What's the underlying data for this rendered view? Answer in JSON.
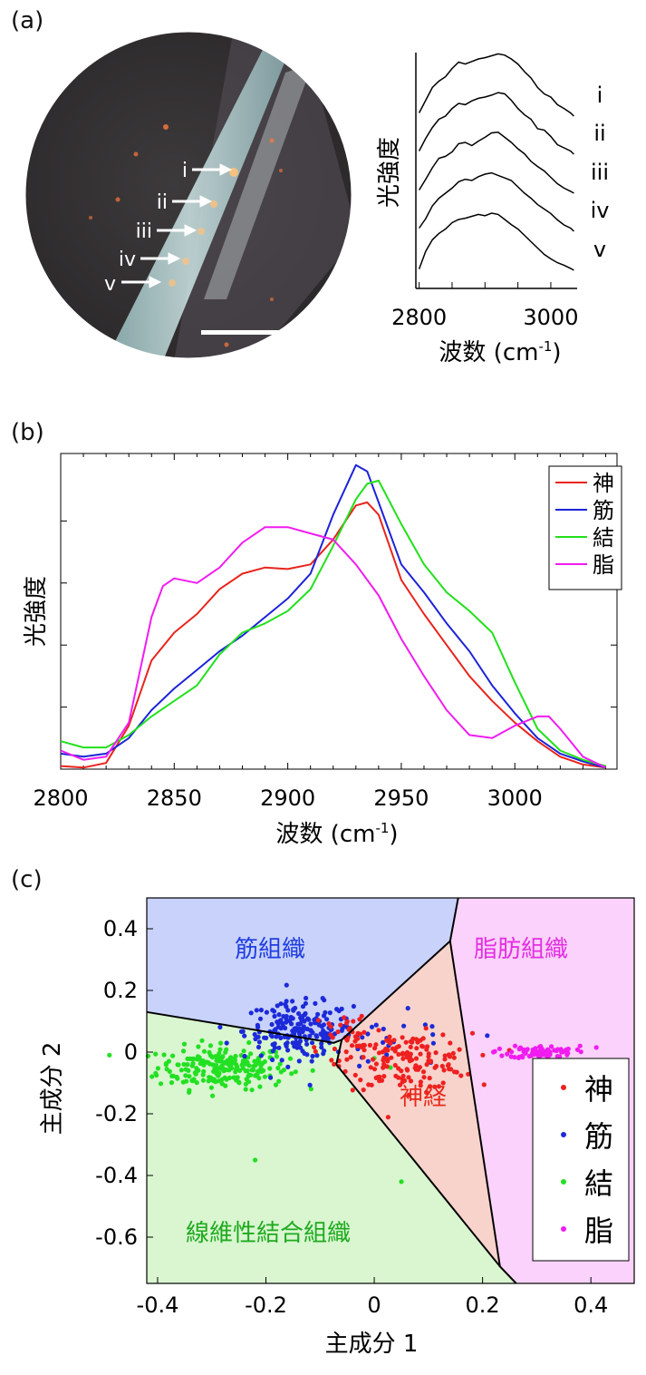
{
  "panels": {
    "a": "(a)",
    "b": "(b)",
    "c": "(c)"
  },
  "micrograph": {
    "arrow_labels": [
      "i",
      "ii",
      "iii",
      "iv",
      "v"
    ]
  },
  "chart_data": [
    {
      "type": "line",
      "panel": "a",
      "ylabel": "光強度",
      "xlabel_main": "波数 (cm",
      "xlabel_sup": "-1",
      "xlabel_end": ")",
      "xticks": [
        2800,
        3000
      ],
      "xlim": [
        2795,
        3040
      ],
      "yticks": false,
      "series_names": [
        "i",
        "ii",
        "iii",
        "iv",
        "v"
      ],
      "series": [
        {
          "name": "i",
          "x": [
            2800,
            2810,
            2820,
            2830,
            2840,
            2850,
            2860,
            2870,
            2880,
            2890,
            2900,
            2910,
            2920,
            2930,
            2940,
            2950,
            2960,
            2970,
            2980,
            2990,
            3000,
            3010,
            3020,
            3030,
            3035
          ],
          "values": [
            0.05,
            0.25,
            0.45,
            0.55,
            0.62,
            0.75,
            0.85,
            0.82,
            0.86,
            0.9,
            0.92,
            0.95,
            0.98,
            0.96,
            0.9,
            0.82,
            0.7,
            0.6,
            0.45,
            0.35,
            0.3,
            0.18,
            0.12,
            0.05,
            0.0
          ]
        },
        {
          "name": "ii",
          "x": [
            2800,
            2810,
            2820,
            2830,
            2840,
            2850,
            2860,
            2870,
            2880,
            2890,
            2900,
            2910,
            2920,
            2930,
            2940,
            2950,
            2960,
            2970,
            2980,
            2990,
            3000,
            3010,
            3020,
            3030,
            3035
          ],
          "values": [
            0.05,
            0.25,
            0.42,
            0.55,
            0.6,
            0.72,
            0.8,
            0.78,
            0.84,
            0.88,
            0.9,
            0.93,
            0.97,
            0.95,
            0.85,
            0.72,
            0.62,
            0.55,
            0.4,
            0.38,
            0.28,
            0.15,
            0.1,
            0.05,
            0.0
          ]
        },
        {
          "name": "iii",
          "x": [
            2800,
            2810,
            2820,
            2830,
            2840,
            2850,
            2860,
            2870,
            2880,
            2890,
            2900,
            2910,
            2920,
            2930,
            2940,
            2950,
            2960,
            2970,
            2980,
            2990,
            3000,
            3010,
            3020,
            3030,
            3035
          ],
          "values": [
            0.05,
            0.22,
            0.4,
            0.55,
            0.58,
            0.65,
            0.78,
            0.8,
            0.75,
            0.82,
            0.88,
            0.95,
            0.96,
            0.88,
            0.8,
            0.7,
            0.62,
            0.5,
            0.42,
            0.35,
            0.25,
            0.15,
            0.08,
            0.03,
            0.0
          ]
        },
        {
          "name": "iv",
          "x": [
            2800,
            2810,
            2820,
            2830,
            2840,
            2850,
            2860,
            2870,
            2880,
            2890,
            2900,
            2910,
            2920,
            2930,
            2940,
            2950,
            2960,
            2970,
            2980,
            2990,
            3000,
            3010,
            3020,
            3030,
            3035
          ],
          "values": [
            0.05,
            0.2,
            0.4,
            0.52,
            0.6,
            0.68,
            0.78,
            0.82,
            0.8,
            0.86,
            0.9,
            0.92,
            0.88,
            0.84,
            0.8,
            0.7,
            0.6,
            0.52,
            0.42,
            0.35,
            0.28,
            0.18,
            0.1,
            0.05,
            0.0
          ]
        },
        {
          "name": "v",
          "x": [
            2800,
            2810,
            2820,
            2830,
            2840,
            2850,
            2860,
            2870,
            2880,
            2890,
            2900,
            2910,
            2920,
            2930,
            2940,
            2950,
            2960,
            2970,
            2980,
            2990,
            3000,
            3010,
            3020,
            3030,
            3035
          ],
          "values": [
            0.02,
            0.3,
            0.48,
            0.58,
            0.65,
            0.75,
            0.8,
            0.82,
            0.85,
            0.88,
            0.86,
            0.9,
            0.88,
            0.8,
            0.72,
            0.65,
            0.55,
            0.45,
            0.35,
            0.25,
            0.18,
            0.12,
            0.08,
            0.03,
            0.0
          ]
        }
      ]
    },
    {
      "type": "line",
      "panel": "b",
      "ylabel": "光強度",
      "xlabel_main": "波数 (cm",
      "xlabel_sup": "-1",
      "xlabel_end": ")",
      "xticks": [
        2800,
        2850,
        2900,
        2950,
        3000
      ],
      "xlim": [
        2800,
        3045
      ],
      "ylim": [
        0,
        1
      ],
      "legend_position": "top-right",
      "series": [
        {
          "name": "神",
          "color": "#e8241c",
          "x": [
            2800,
            2810,
            2820,
            2830,
            2840,
            2850,
            2860,
            2870,
            2880,
            2890,
            2900,
            2910,
            2920,
            2930,
            2935,
            2940,
            2950,
            2960,
            2970,
            2980,
            2990,
            3000,
            3010,
            3020,
            3030,
            3040
          ],
          "values": [
            0.01,
            0.005,
            0.02,
            0.14,
            0.35,
            0.44,
            0.5,
            0.58,
            0.63,
            0.65,
            0.645,
            0.66,
            0.74,
            0.85,
            0.86,
            0.82,
            0.61,
            0.5,
            0.4,
            0.3,
            0.22,
            0.15,
            0.09,
            0.04,
            0.015,
            0.005
          ]
        },
        {
          "name": "筋",
          "color": "#1c23d8",
          "x": [
            2800,
            2810,
            2820,
            2830,
            2840,
            2850,
            2860,
            2870,
            2880,
            2890,
            2900,
            2910,
            2920,
            2930,
            2935,
            2940,
            2950,
            2960,
            2970,
            2980,
            2990,
            3000,
            3010,
            3020,
            3030,
            3040
          ],
          "values": [
            0.05,
            0.04,
            0.05,
            0.1,
            0.19,
            0.26,
            0.32,
            0.38,
            0.43,
            0.49,
            0.55,
            0.63,
            0.82,
            0.98,
            0.96,
            0.86,
            0.66,
            0.57,
            0.47,
            0.38,
            0.27,
            0.18,
            0.1,
            0.05,
            0.025,
            0.005
          ]
        },
        {
          "name": "結",
          "color": "#22e01c",
          "x": [
            2800,
            2810,
            2820,
            2830,
            2840,
            2850,
            2860,
            2870,
            2880,
            2890,
            2900,
            2910,
            2920,
            2930,
            2935,
            2940,
            2950,
            2960,
            2970,
            2980,
            2990,
            3000,
            3010,
            3020,
            3030,
            3040
          ],
          "values": [
            0.09,
            0.07,
            0.07,
            0.11,
            0.17,
            0.22,
            0.27,
            0.37,
            0.44,
            0.47,
            0.51,
            0.58,
            0.72,
            0.87,
            0.92,
            0.93,
            0.79,
            0.66,
            0.57,
            0.51,
            0.44,
            0.28,
            0.13,
            0.06,
            0.03,
            0.01
          ]
        },
        {
          "name": "脂",
          "color": "#f01cf0",
          "x": [
            2800,
            2810,
            2820,
            2830,
            2840,
            2845,
            2850,
            2860,
            2870,
            2880,
            2890,
            2900,
            2910,
            2920,
            2930,
            2940,
            2950,
            2960,
            2970,
            2980,
            2990,
            3000,
            3010,
            3015,
            3020,
            3030,
            3040
          ],
          "values": [
            0.06,
            0.03,
            0.04,
            0.15,
            0.49,
            0.59,
            0.615,
            0.6,
            0.65,
            0.73,
            0.78,
            0.78,
            0.76,
            0.74,
            0.66,
            0.56,
            0.42,
            0.3,
            0.19,
            0.11,
            0.1,
            0.14,
            0.17,
            0.17,
            0.13,
            0.04,
            0.005
          ]
        }
      ]
    },
    {
      "type": "scatter",
      "panel": "c",
      "xlabel": "主成分 1",
      "ylabel": "主成分 2",
      "xticks": [
        -0.4,
        -0.2,
        0,
        0.2,
        0.4
      ],
      "yticks": [
        0.4,
        0.2,
        0,
        -0.2,
        -0.4,
        -0.6
      ],
      "xtick_labels": [
        "-0.4",
        "-0.2",
        "0",
        "0.2",
        "0.4"
      ],
      "ytick_labels": [
        "0.4",
        "0.2",
        "0",
        "-0.2",
        "-0.4",
        "-0.6"
      ],
      "xlim": [
        -0.42,
        0.48
      ],
      "ylim": [
        -0.75,
        0.5
      ],
      "legend_position": "bottom-right",
      "regions": [
        {
          "label": "筋組織",
          "fill": "#c9d2fb",
          "text_color": "#1f3ee0",
          "polygon": [
            [
              -0.42,
              0.5
            ],
            [
              0.155,
              0.5
            ],
            [
              0.14,
              0.36
            ],
            [
              -0.06,
              0.04
            ],
            [
              -0.075,
              0.03
            ],
            [
              -0.42,
              0.13
            ]
          ]
        },
        {
          "label": "脂肪組織",
          "fill": "#fbd2fb",
          "text_color": "#e22fe2",
          "polygon": [
            [
              0.155,
              0.5
            ],
            [
              0.48,
              0.5
            ],
            [
              0.48,
              -0.75
            ],
            [
              0.262,
              -0.75
            ],
            [
              0.232,
              -0.695
            ],
            [
              0.14,
              0.36
            ]
          ]
        },
        {
          "label": "神経",
          "fill": "#f8d3cc",
          "text_color": "#e8291c",
          "polygon": [
            [
              0.14,
              0.36
            ],
            [
              0.232,
              -0.695
            ],
            [
              -0.07,
              -0.04
            ],
            [
              -0.06,
              0.04
            ]
          ]
        },
        {
          "label": "線維性結合組織",
          "fill": "#d9f6d0",
          "text_color": "#1faa1f",
          "polygon": [
            [
              -0.42,
              0.13
            ],
            [
              -0.075,
              0.03
            ],
            [
              -0.06,
              0.04
            ],
            [
              -0.07,
              -0.04
            ],
            [
              0.232,
              -0.695
            ],
            [
              0.262,
              -0.75
            ],
            [
              -0.42,
              -0.75
            ]
          ]
        }
      ],
      "boundaries": [
        [
          [
            -0.42,
            0.13
          ],
          [
            -0.075,
            0.03
          ],
          [
            -0.06,
            0.04
          ],
          [
            0.14,
            0.36
          ],
          [
            0.155,
            0.5
          ]
        ],
        [
          [
            -0.07,
            -0.04
          ],
          [
            -0.06,
            0.04
          ]
        ],
        [
          [
            -0.07,
            -0.04
          ],
          [
            0.232,
            -0.695
          ]
        ],
        [
          [
            0.14,
            0.36
          ],
          [
            0.232,
            -0.695
          ],
          [
            0.262,
            -0.75
          ]
        ]
      ],
      "series": [
        {
          "name": "神",
          "color": "#ee2020",
          "clusters": [
            {
              "cx": 0.06,
              "cy": -0.03,
              "sx": 0.06,
              "sy": 0.045,
              "n": 150
            },
            {
              "cx": -0.04,
              "cy": 0.05,
              "sx": 0.04,
              "sy": 0.05,
              "n": 40
            }
          ]
        },
        {
          "name": "筋",
          "color": "#1c2ad8",
          "clusters": [
            {
              "cx": -0.14,
              "cy": 0.07,
              "sx": 0.05,
              "sy": 0.045,
              "n": 200
            },
            {
              "cx": 0.04,
              "cy": 0.02,
              "sx": 0.07,
              "sy": 0.05,
              "n": 25
            }
          ]
        },
        {
          "name": "結",
          "color": "#22e022",
          "clusters": [
            {
              "cx": -0.28,
              "cy": -0.05,
              "sx": 0.06,
              "sy": 0.035,
              "n": 230
            }
          ],
          "outliers": [
            [
              -0.22,
              -0.35
            ],
            [
              0.05,
              -0.42
            ],
            [
              0.0,
              -0.02
            ],
            [
              0.03,
              -0.05
            ]
          ]
        },
        {
          "name": "脂",
          "color": "#f01cf0",
          "clusters": [
            {
              "cx": 0.31,
              "cy": 0.0,
              "sx": 0.03,
              "sy": 0.01,
              "n": 80
            }
          ],
          "outliers": [
            [
              0.38,
              0.02
            ],
            [
              0.41,
              0.015
            ],
            [
              0.26,
              0.02
            ],
            [
              0.22,
              0.0
            ]
          ]
        }
      ]
    }
  ]
}
